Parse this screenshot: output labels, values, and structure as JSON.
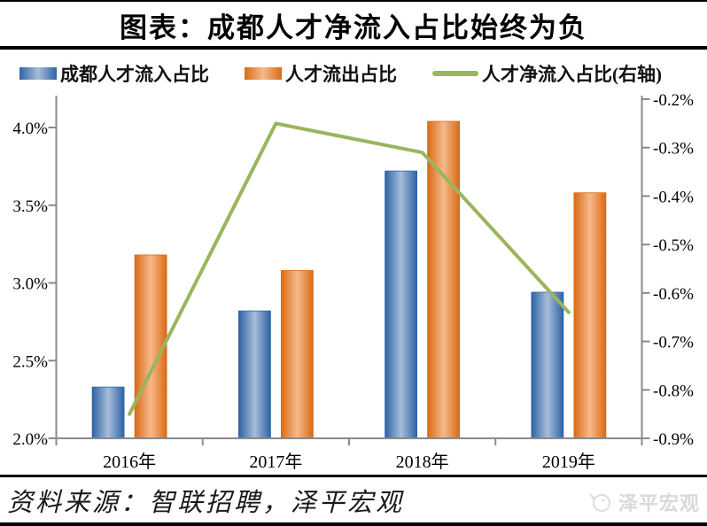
{
  "title": "图表：成都人才净流入占比始终为负",
  "legend": [
    {
      "label": "成都人才流入占比",
      "type": "bar",
      "color": "#2e63a6",
      "color_light": "#a6bdd8"
    },
    {
      "label": "人才流出占比",
      "type": "bar",
      "color": "#d96a16",
      "color_light": "#f6b98a"
    },
    {
      "label": "人才净流入占比(右轴)",
      "type": "line",
      "color": "#9ab55c"
    }
  ],
  "chart_data": {
    "type": "bar",
    "categories": [
      "2016年",
      "2017年",
      "2018年",
      "2019年"
    ],
    "series": [
      {
        "name": "成都人才流入占比",
        "type": "bar",
        "axis": "left",
        "values": [
          2.33,
          2.82,
          3.72,
          2.94
        ]
      },
      {
        "name": "人才流出占比",
        "type": "bar",
        "axis": "left",
        "values": [
          3.18,
          3.08,
          4.04,
          3.58
        ]
      },
      {
        "name": "人才净流入占比(右轴)",
        "type": "line",
        "axis": "right",
        "values": [
          -0.85,
          -0.25,
          -0.31,
          -0.64
        ]
      }
    ],
    "title": "图表：成都人才净流入占比始终为负",
    "xlabel": "",
    "ylabel": "",
    "left_axis": {
      "min": 2.0,
      "max": 4.0,
      "tick_values": [
        4.0,
        3.5,
        3.0,
        2.5,
        2.0
      ],
      "tick_labels": [
        "4.0%",
        "3.5%",
        "3.0%",
        "2.5%",
        "2.0%"
      ]
    },
    "right_axis": {
      "min": -0.9,
      "max": -0.2,
      "tick_values": [
        -0.2,
        -0.3,
        -0.4,
        -0.5,
        -0.6,
        -0.7,
        -0.8,
        -0.9
      ],
      "tick_labels": [
        "-0.2%",
        "-0.3%",
        "-0.4%",
        "-0.5%",
        "-0.6%",
        "-0.7%",
        "-0.8%",
        "-0.9%"
      ]
    },
    "grid": false,
    "legend_position": "top"
  },
  "axis_color": "#8a8a8a",
  "line_color": "#9ab55c",
  "source_note": "资料来源：智联招聘，泽平宏观",
  "watermark": {
    "text": "泽平宏观"
  }
}
